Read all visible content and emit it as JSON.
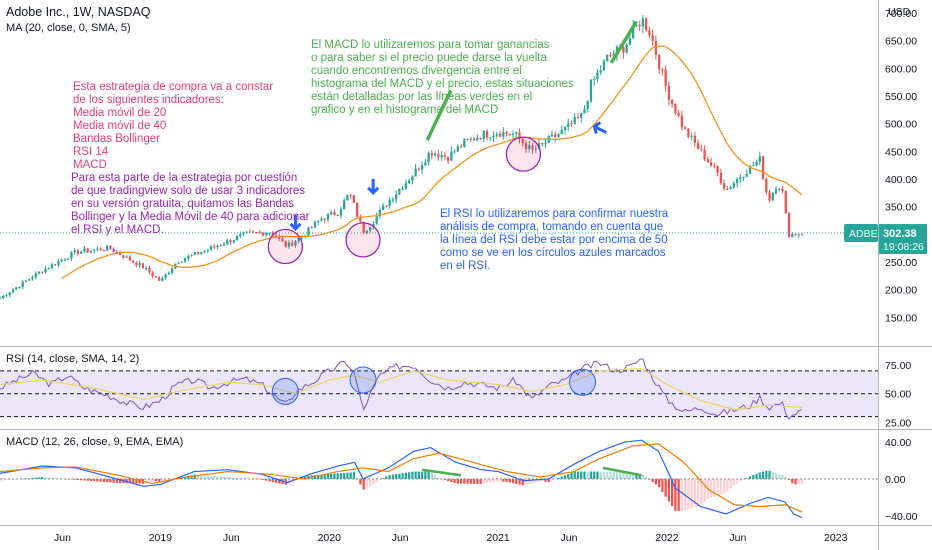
{
  "header": {
    "symbol": "Adobe Inc., 1W, NASDAQ",
    "ma_label": "MA (20, close, 0, SMA, 5)",
    "currency": "USD"
  },
  "price_badge": {
    "ticker": "ADBE",
    "price": "302.38",
    "timer": "19:08:26",
    "color": "#26a69a"
  },
  "annotations": {
    "strategy": "Esta estrategia de compra va a constar\nde los siguientes indicadores:\nMedia móvil de 20\nMedia móvil de 40\nBandas Bollinger\nRSI 14\nMACD",
    "tradingview": "Para esta parte de la estrategia por cuestión\nde que tradingview solo de usar 3 indicadores\nen su versión gratuita, quitamos las Bandas\nBollinger y la Media Móvil de 40 para adicionar\nel RSI y el MACD.",
    "macd": "El MACD lo utilizaremos para tomar ganancias\no para saber si el precio puede darse la vuelta\ncuando encontremos divergencia entre el\nhistograma del MACD y el precio, estas situaciones\nestán detalladas por las líneas verdes en el\ngrafico y en el histograma del MACD",
    "rsi": "El RSI lo utilizaremos para confirmar nuestra\nanálisis de compra, tomando en cuenta que\nla línea del RSI debe estar por encima de 50\ncomo se ve en los círculos azules marcados\nen el RSI.",
    "colors": {
      "strategy": "#e0407c",
      "tradingview": "#9c27b0",
      "macd": "#4caf50",
      "rsi": "#2962ff"
    }
  },
  "chart_data": [
    {
      "type": "candlestick",
      "title": "Adobe Inc., 1W, NASDAQ",
      "overlay": "MA (20, close, 0, SMA, 5)",
      "ylim": [
        100,
        720
      ],
      "yticks": [
        150,
        200,
        250,
        300,
        350,
        400,
        450,
        500,
        550,
        600,
        650,
        700
      ],
      "ytick_labels": [
        "150.00",
        "200.00",
        "250.00",
        "300.00",
        "350.00",
        "400.00",
        "450.00",
        "500.00",
        "550.00",
        "600.00",
        "650.00",
        "700.00"
      ],
      "last_price": 302.38,
      "x_labels": [
        "Jun",
        "2019",
        "Jun",
        "2020",
        "Jun",
        "2021",
        "Jun",
        "2022",
        "Jun",
        "2023"
      ],
      "x_label_dates": [
        2018.42,
        2019.0,
        2019.42,
        2020.0,
        2020.42,
        2021.0,
        2021.42,
        2022.0,
        2022.42,
        2023.0
      ],
      "x_range": [
        2018.05,
        2023.25
      ],
      "last_date": 2022.8,
      "anchors": [
        [
          2018.05,
          185
        ],
        [
          2018.3,
          235
        ],
        [
          2018.5,
          268
        ],
        [
          2018.7,
          275
        ],
        [
          2018.9,
          240
        ],
        [
          2019.0,
          215
        ],
        [
          2019.1,
          252
        ],
        [
          2019.3,
          275
        ],
        [
          2019.5,
          300
        ],
        [
          2019.65,
          305
        ],
        [
          2019.75,
          278
        ],
        [
          2019.85,
          300
        ],
        [
          2019.95,
          328
        ],
        [
          2020.05,
          340
        ],
        [
          2020.12,
          375
        ],
        [
          2020.2,
          305
        ],
        [
          2020.25,
          320
        ],
        [
          2020.35,
          360
        ],
        [
          2020.5,
          410
        ],
        [
          2020.6,
          450
        ],
        [
          2020.7,
          440
        ],
        [
          2020.8,
          465
        ],
        [
          2020.9,
          480
        ],
        [
          2021.0,
          485
        ],
        [
          2021.1,
          480
        ],
        [
          2021.2,
          450
        ],
        [
          2021.3,
          470
        ],
        [
          2021.4,
          490
        ],
        [
          2021.5,
          515
        ],
        [
          2021.55,
          570
        ],
        [
          2021.65,
          620
        ],
        [
          2021.75,
          640
        ],
        [
          2021.85,
          690
        ],
        [
          2021.9,
          665
        ],
        [
          2022.0,
          560
        ],
        [
          2022.1,
          490
        ],
        [
          2022.2,
          450
        ],
        [
          2022.3,
          410
        ],
        [
          2022.35,
          380
        ],
        [
          2022.45,
          410
        ],
        [
          2022.55,
          435
        ],
        [
          2022.6,
          360
        ],
        [
          2022.65,
          390
        ],
        [
          2022.68,
          385
        ],
        [
          2022.72,
          300
        ],
        [
          2022.8,
          302
        ]
      ],
      "colors": {
        "up": "#26a69a",
        "down": "#ef5350",
        "ma": "#f7931a"
      }
    },
    {
      "type": "line",
      "title": "RSI (14, close, SMA, 14, 2)",
      "ylim": [
        20,
        90
      ],
      "yticks": [
        25,
        50,
        75
      ],
      "ytick_labels": [
        "25.00",
        "50.00",
        "75.00"
      ],
      "bands": [
        30,
        50,
        70
      ],
      "series": [
        {
          "values": [
            [
              2018.05,
              55
            ],
            [
              2018.15,
              62
            ],
            [
              2018.25,
              68
            ],
            [
              2018.35,
              58
            ],
            [
              2018.45,
              66
            ],
            [
              2018.55,
              55
            ],
            [
              2018.7,
              48
            ],
            [
              2018.8,
              42
            ],
            [
              2018.9,
              38
            ],
            [
              2019.0,
              44
            ],
            [
              2019.1,
              58
            ],
            [
              2019.2,
              62
            ],
            [
              2019.3,
              55
            ],
            [
              2019.4,
              60
            ],
            [
              2019.5,
              63
            ],
            [
              2019.6,
              58
            ],
            [
              2019.7,
              45
            ],
            [
              2019.75,
              40
            ],
            [
              2019.8,
              52
            ],
            [
              2019.9,
              60
            ],
            [
              2020.0,
              70
            ],
            [
              2020.1,
              78
            ],
            [
              2020.15,
              68
            ],
            [
              2020.2,
              35
            ],
            [
              2020.25,
              52
            ],
            [
              2020.3,
              66
            ],
            [
              2020.4,
              74
            ],
            [
              2020.5,
              75
            ],
            [
              2020.6,
              62
            ],
            [
              2020.7,
              55
            ],
            [
              2020.8,
              60
            ],
            [
              2020.9,
              58
            ],
            [
              2021.0,
              55
            ],
            [
              2021.1,
              62
            ],
            [
              2021.2,
              45
            ],
            [
              2021.3,
              57
            ],
            [
              2021.4,
              62
            ],
            [
              2021.5,
              72
            ],
            [
              2021.6,
              77
            ],
            [
              2021.7,
              70
            ],
            [
              2021.8,
              75
            ],
            [
              2021.85,
              82
            ],
            [
              2021.9,
              68
            ],
            [
              2022.0,
              45
            ],
            [
              2022.1,
              34
            ],
            [
              2022.2,
              38
            ],
            [
              2022.3,
              32
            ],
            [
              2022.4,
              36
            ],
            [
              2022.5,
              40
            ],
            [
              2022.55,
              47
            ],
            [
              2022.6,
              38
            ],
            [
              2022.68,
              42
            ],
            [
              2022.72,
              30
            ],
            [
              2022.8,
              35
            ]
          ]
        },
        {
          "values": [
            [
              2018.05,
              58
            ],
            [
              2018.3,
              62
            ],
            [
              2018.6,
              55
            ],
            [
              2018.9,
              45
            ],
            [
              2019.1,
              52
            ],
            [
              2019.4,
              60
            ],
            [
              2019.6,
              58
            ],
            [
              2019.8,
              50
            ],
            [
              2020.0,
              62
            ],
            [
              2020.15,
              66
            ],
            [
              2020.3,
              60
            ],
            [
              2020.5,
              70
            ],
            [
              2020.7,
              62
            ],
            [
              2021.0,
              58
            ],
            [
              2021.2,
              52
            ],
            [
              2021.4,
              58
            ],
            [
              2021.6,
              70
            ],
            [
              2021.85,
              72
            ],
            [
              2022.0,
              58
            ],
            [
              2022.2,
              44
            ],
            [
              2022.4,
              36
            ],
            [
              2022.6,
              40
            ],
            [
              2022.8,
              38
            ]
          ]
        }
      ],
      "colors": {
        "rsi": "#7e57c2",
        "ma": "#e6d563",
        "band": "#ece6fb"
      }
    },
    {
      "type": "line",
      "title": "MACD (12, 26, close, 9, EMA, EMA)",
      "ylim": [
        -50,
        52
      ],
      "yticks": [
        -40,
        0,
        40
      ],
      "ytick_labels": [
        "−40.00",
        "0.00",
        "40.00"
      ],
      "series": [
        {
          "values": [
            [
              2018.05,
              6
            ],
            [
              2018.3,
              14
            ],
            [
              2018.5,
              12
            ],
            [
              2018.7,
              2
            ],
            [
              2018.9,
              -8
            ],
            [
              2019.0,
              -6
            ],
            [
              2019.2,
              8
            ],
            [
              2019.4,
              10
            ],
            [
              2019.6,
              5
            ],
            [
              2019.75,
              -4
            ],
            [
              2019.9,
              6
            ],
            [
              2020.05,
              14
            ],
            [
              2020.15,
              18
            ],
            [
              2020.2,
              0
            ],
            [
              2020.35,
              12
            ],
            [
              2020.5,
              30
            ],
            [
              2020.6,
              34
            ],
            [
              2020.75,
              18
            ],
            [
              2020.9,
              10
            ],
            [
              2021.0,
              8
            ],
            [
              2021.15,
              -2
            ],
            [
              2021.3,
              0
            ],
            [
              2021.45,
              16
            ],
            [
              2021.6,
              30
            ],
            [
              2021.75,
              40
            ],
            [
              2021.85,
              42
            ],
            [
              2021.95,
              30
            ],
            [
              2022.05,
              -10
            ],
            [
              2022.2,
              -30
            ],
            [
              2022.35,
              -38
            ],
            [
              2022.5,
              -26
            ],
            [
              2022.6,
              -20
            ],
            [
              2022.7,
              -25
            ],
            [
              2022.75,
              -38
            ],
            [
              2022.8,
              -42
            ]
          ]
        },
        {
          "values": [
            [
              2018.05,
              8
            ],
            [
              2018.3,
              12
            ],
            [
              2018.5,
              13
            ],
            [
              2018.75,
              4
            ],
            [
              2018.95,
              -5
            ],
            [
              2019.15,
              2
            ],
            [
              2019.4,
              8
            ],
            [
              2019.65,
              5
            ],
            [
              2019.85,
              0
            ],
            [
              2020.05,
              8
            ],
            [
              2020.2,
              12
            ],
            [
              2020.35,
              8
            ],
            [
              2020.5,
              22
            ],
            [
              2020.65,
              28
            ],
            [
              2020.85,
              18
            ],
            [
              2021.05,
              8
            ],
            [
              2021.25,
              2
            ],
            [
              2021.45,
              8
            ],
            [
              2021.6,
              22
            ],
            [
              2021.8,
              36
            ],
            [
              2021.95,
              38
            ],
            [
              2022.1,
              18
            ],
            [
              2022.25,
              -12
            ],
            [
              2022.4,
              -28
            ],
            [
              2022.55,
              -30
            ],
            [
              2022.7,
              -28
            ],
            [
              2022.8,
              -36
            ]
          ]
        }
      ],
      "colors": {
        "macd": "#2962ff",
        "signal": "#f57c00",
        "hist_up": "#26a69a",
        "hist_up_light": "#b2dfdb",
        "hist_down": "#ef5350",
        "hist_down_light": "#ffcdd2"
      }
    }
  ]
}
